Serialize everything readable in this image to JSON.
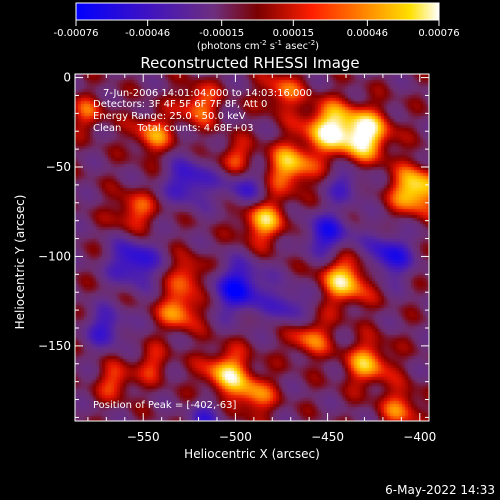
{
  "colorbar": {
    "tick_labels": [
      "-0.00076",
      "-0.00046",
      "-0.00015",
      "0.00015",
      "0.00046",
      "0.00076"
    ],
    "tick_values": [
      -0.00076,
      -0.00046,
      -0.00015,
      0.00015,
      0.00046,
      0.00076
    ],
    "range": [
      -0.00076,
      0.00076
    ],
    "unit_parts": [
      "(photons cm",
      "-2",
      " s",
      "-1",
      " asec",
      "-2",
      ")"
    ]
  },
  "chart_data": {
    "type": "heatmap",
    "title": "Reconstructed RHESSI Image",
    "xlabel": "Heliocentric X (arcsec)",
    "ylabel": "Heliocentric Y (arcsec)",
    "xlim": [
      -587,
      -395
    ],
    "ylim": [
      -192,
      2
    ],
    "x_ticks": [
      -550,
      -500,
      -450,
      -400
    ],
    "x_tick_labels": [
      "−550",
      "−500",
      "−450",
      "−400"
    ],
    "y_ticks": [
      0,
      -50,
      -100,
      -150
    ],
    "y_tick_labels": [
      "0",
      "−50",
      "−100",
      "−150"
    ],
    "annotations": [
      "7-Jun-2006 14:01:04.000 to 14:03:16.000",
      "Detectors: 3F 4F 5F 6F 7F 8F, Att 0",
      "Energy Range: 25.0 - 50.0 keV",
      "Clean     Total counts: 4.68E+03"
    ],
    "peak_label": "Position of Peak = [-402,-63]",
    "peak": {
      "x": -402,
      "y": -63
    },
    "value_range": [
      -0.00076,
      0.00076
    ],
    "colormap": [
      "#0000ff",
      "#5a1fbf",
      "#6e2f7f",
      "#8a0000",
      "#ff2200",
      "#ff8a00",
      "#ffd000",
      "#ffffff"
    ],
    "sources": [
      {
        "x": -430,
        "y": -32,
        "amp": 1.0,
        "w": 10
      },
      {
        "x": -402,
        "y": -63,
        "amp": 1.0,
        "w": 9
      },
      {
        "x": -450,
        "y": -28,
        "amp": 0.85,
        "w": 10
      },
      {
        "x": -470,
        "y": -50,
        "amp": 0.8,
        "w": 9
      },
      {
        "x": -485,
        "y": -80,
        "amp": 0.75,
        "w": 9
      },
      {
        "x": -440,
        "y": -113,
        "amp": 0.85,
        "w": 10
      },
      {
        "x": -520,
        "y": -15,
        "amp": 0.6,
        "w": 8
      },
      {
        "x": -545,
        "y": -32,
        "amp": 0.6,
        "w": 8
      },
      {
        "x": -555,
        "y": -75,
        "amp": 0.55,
        "w": 8
      },
      {
        "x": -530,
        "y": -130,
        "amp": 0.7,
        "w": 8
      },
      {
        "x": -525,
        "y": -110,
        "amp": 0.55,
        "w": 7
      },
      {
        "x": -505,
        "y": -165,
        "amp": 0.8,
        "w": 9
      },
      {
        "x": -490,
        "y": -178,
        "amp": 0.6,
        "w": 8
      },
      {
        "x": -460,
        "y": -145,
        "amp": 0.6,
        "w": 8
      },
      {
        "x": -428,
        "y": -160,
        "amp": 0.7,
        "w": 9
      },
      {
        "x": -410,
        "y": -185,
        "amp": 0.55,
        "w": 8
      },
      {
        "x": -475,
        "y": -8,
        "amp": 0.55,
        "w": 8
      },
      {
        "x": -565,
        "y": -170,
        "amp": 0.5,
        "w": 7
      },
      {
        "x": -500,
        "y": -45,
        "amp": 0.5,
        "w": 7
      },
      {
        "x": -580,
        "y": -20,
        "amp": 0.45,
        "w": 7
      },
      {
        "x": -545,
        "y": -160,
        "amp": 0.4,
        "w": 7
      },
      {
        "x": -498,
        "y": -118,
        "amp": -0.9,
        "w": 10
      },
      {
        "x": -555,
        "y": -103,
        "amp": -0.8,
        "w": 9
      },
      {
        "x": -525,
        "y": -58,
        "amp": -0.7,
        "w": 9
      },
      {
        "x": -450,
        "y": -88,
        "amp": -0.75,
        "w": 9
      },
      {
        "x": -417,
        "y": -100,
        "amp": -0.8,
        "w": 9
      },
      {
        "x": -495,
        "y": -62,
        "amp": -0.55,
        "w": 8
      },
      {
        "x": -470,
        "y": -128,
        "amp": -0.55,
        "w": 8
      },
      {
        "x": -570,
        "y": -140,
        "amp": -0.6,
        "w": 8
      },
      {
        "x": -440,
        "y": -60,
        "amp": -0.5,
        "w": 7
      },
      {
        "x": -515,
        "y": -190,
        "amp": -0.5,
        "w": 7
      }
    ]
  },
  "footer": {
    "date": "6-May-2022 14:33"
  }
}
